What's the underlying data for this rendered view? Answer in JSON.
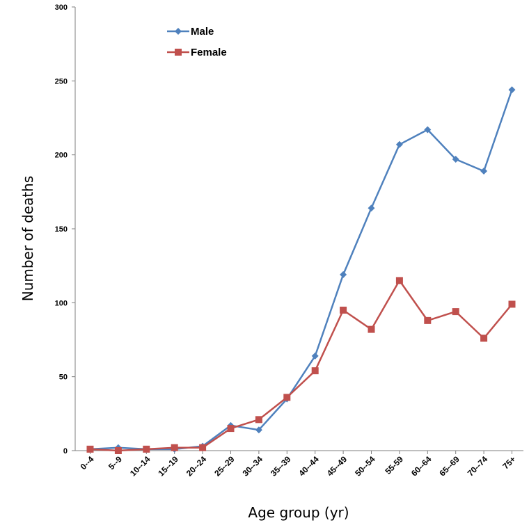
{
  "chart_data": {
    "type": "line",
    "title": "",
    "xlabel": "Age group (yr)",
    "ylabel": "Number of deaths",
    "ylim": [
      0,
      300
    ],
    "yticks": [
      "0",
      "50",
      "100",
      "150",
      "200",
      "250",
      "300"
    ],
    "grid": false,
    "legend_position": "top-left",
    "categories": [
      "0--4",
      "5--9",
      "10--14",
      "15--19",
      "20--24",
      "25--29",
      "30--34",
      "35--39",
      "40--44",
      "45--49",
      "50--54",
      "55-59",
      "60--64",
      "65--69",
      "70--74",
      "75+"
    ],
    "series": [
      {
        "name": "Male",
        "color": "#4f81bd",
        "marker": "diamond",
        "values": [
          1,
          2,
          1,
          1,
          3,
          17,
          14,
          35,
          64,
          119,
          164,
          207,
          217,
          197,
          189,
          244
        ]
      },
      {
        "name": "Female",
        "color": "#c0504d",
        "marker": "square",
        "values": [
          1,
          0,
          1,
          2,
          2,
          15,
          21,
          36,
          54,
          95,
          82,
          115,
          88,
          94,
          76,
          99
        ]
      }
    ]
  }
}
